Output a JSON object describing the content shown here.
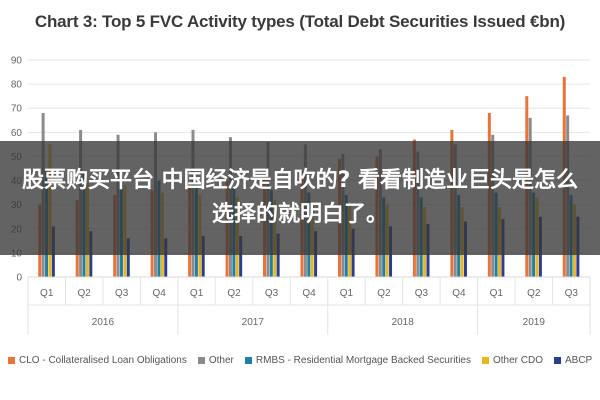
{
  "overlay": {
    "text": "股票购买平台 中国经济是自吹的? 看看制造业巨头是怎么选择的就明白了。"
  },
  "chart_data": {
    "type": "bar",
    "title": "Chart 3: Top 5 FVC Activity types (Total Debt Securities Issued €bn)",
    "xlabel": "",
    "ylabel": "",
    "ylim": [
      0,
      90
    ],
    "yticks": [
      0,
      10,
      20,
      30,
      40,
      50,
      60,
      70,
      80,
      90
    ],
    "grid": true,
    "legend_position": "bottom",
    "categories": [
      "Q1",
      "Q2",
      "Q3",
      "Q4",
      "Q1",
      "Q2",
      "Q3",
      "Q4",
      "Q1",
      "Q2",
      "Q3",
      "Q4",
      "Q1",
      "Q2",
      "Q3"
    ],
    "year_groups": [
      {
        "label": "2016",
        "span": 4
      },
      {
        "label": "2017",
        "span": 4
      },
      {
        "label": "2018",
        "span": 4
      },
      {
        "label": "2019",
        "span": 3
      }
    ],
    "series": [
      {
        "name": "CLO - Collateralised Loan Obligations",
        "color": "#e8743b",
        "values": [
          30,
          32,
          34,
          36,
          38,
          40,
          42,
          44,
          49,
          50,
          57,
          61,
          68,
          75,
          83
        ]
      },
      {
        "name": "Other",
        "color": "#8c8c8c",
        "values": [
          68,
          61,
          59,
          60,
          61,
          58,
          56,
          55,
          51,
          53,
          52,
          55,
          59,
          66,
          67
        ]
      },
      {
        "name": "RMBS - Residential Mortgage Backed Securities",
        "color": "#1f7fa8",
        "values": [
          45,
          44,
          42,
          40,
          38,
          37,
          36,
          35,
          34,
          33,
          33,
          34,
          35,
          35,
          34
        ]
      },
      {
        "name": "Other CDO",
        "color": "#e9b820",
        "values": [
          55,
          39,
          38,
          35,
          34,
          33,
          32,
          31,
          30,
          30,
          29,
          29,
          29,
          33,
          30
        ]
      },
      {
        "name": "ABCP",
        "color": "#2b3d8f",
        "values": [
          21,
          19,
          16,
          16,
          17,
          17,
          18,
          19,
          20,
          21,
          22,
          23,
          24,
          25,
          25
        ]
      }
    ]
  }
}
